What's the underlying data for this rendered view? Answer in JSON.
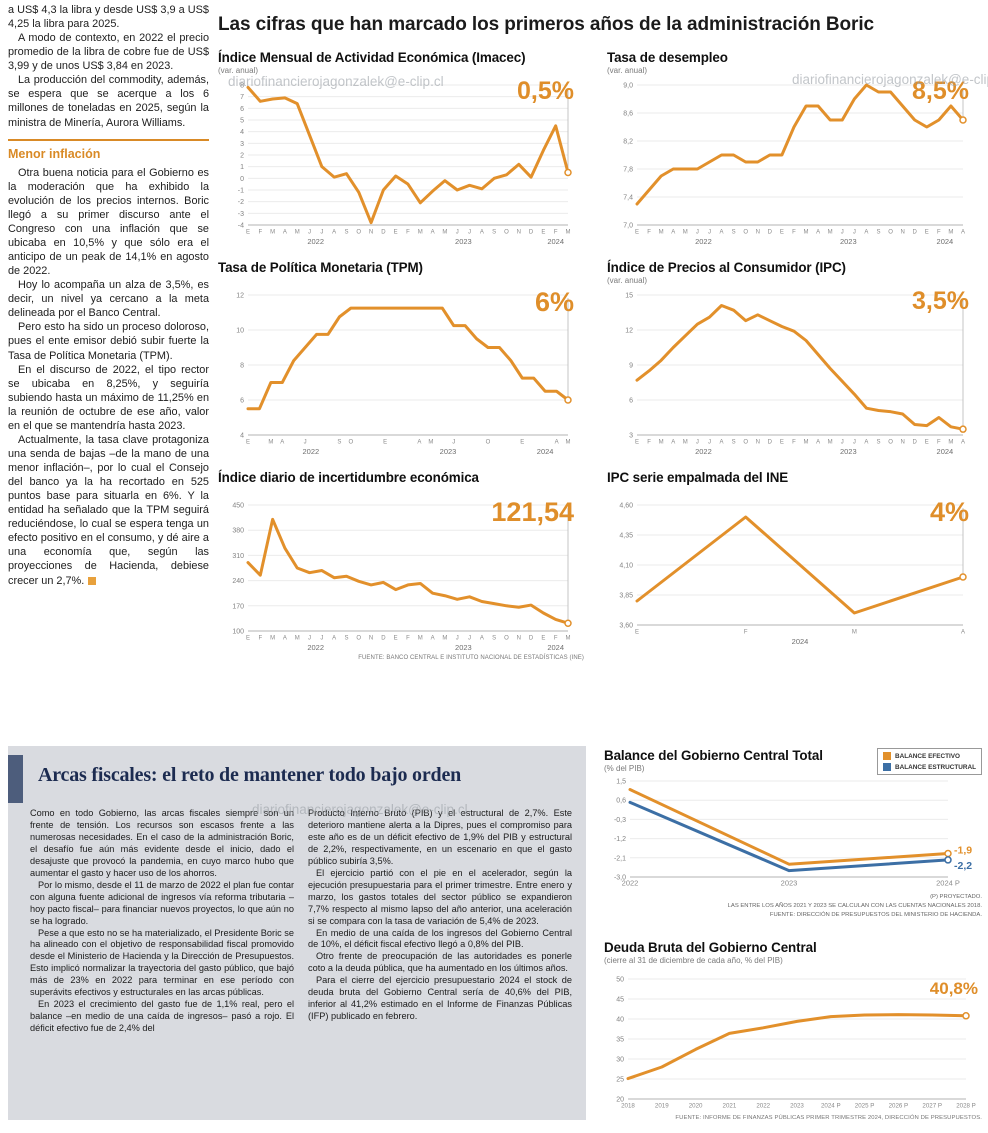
{
  "palette": {
    "orange": "#E2902B",
    "blue": "#3C6FA5",
    "panel_gray": "#D9DBE0",
    "accent_bar": "#4D5D7C",
    "navy": "#1C2B50"
  },
  "watermark": {
    "text": "diariofinancierojagonzalek@e-clip.cl"
  },
  "left_article": {
    "paragraphs": [
      "a US$ 4,3 la libra y desde US$ 3,9 a US$ 4,25 la libra para 2025.",
      "A modo de contexto, en 2022 el precio promedio de la libra de cobre fue de US$ 3,99 y de unos US$ 3,84 en 2023.",
      "La producción del commodity, además, se espera que se acerque a los 6 millones de toneladas en 2025, según la ministra de Minería, Aurora Williams."
    ],
    "subhead": "Menor inflación",
    "paragraphs2": [
      "Otra buena noticia para el Gobierno es la moderación que ha exhibido la evolución de los precios internos. Boric llegó a su primer discurso ante el Congreso con una inflación que se ubicaba en 10,5% y que sólo era el anticipo de un peak de 14,1% en agosto de 2022.",
      "Hoy lo acompaña un alza de 3,5%, es decir, un nivel ya cercano a la meta delineada por el Banco Central.",
      "Pero esto ha sido un proceso doloroso, pues el ente emisor debió subir fuerte la Tasa de Política Monetaria (TPM).",
      "En el discurso de 2022, el tipo rector se ubicaba en 8,25%, y seguiría subiendo hasta un máximo de 11,25% en la reunión de octubre de ese año, valor en el que se mantendría hasta 2023.",
      "Actualmente, la tasa clave protagoniza una senda de bajas –de la mano de una menor inflación–, por lo cual el Consejo del banco ya la ha recortado en 525 puntos base para situarla en 6%. Y la entidad ha señalado que la TPM seguirá reduciéndose, lo cual se espera tenga un efecto positivo en el consumo, y dé aire a una economía que, según las proyecciones de Hacienda, debiese crecer un 2,7%."
    ]
  },
  "main": {
    "title": "Las cifras que han marcado los primeros años de la administración Boric",
    "source": "FUENTE: BANCO CENTRAL E INSTITUTO NACIONAL DE ESTADÍSTICAS (INE)"
  },
  "bottom": {
    "title": "Arcas fiscales: el reto de mantener todo bajo orden",
    "col1": [
      "Como en todo Gobierno, las arcas fiscales siempre son un frente de tensión. Los recursos son escasos frente a las numerosas necesidades. En el caso de la administración Boric, el desafío fue aún más evidente desde el inicio, dado el desajuste que provocó la pandemia, en cuyo marco hubo que aumentar el gasto y hacer uso de los ahorros.",
      "Por lo mismo, desde el 11 de marzo de 2022 el plan fue contar con alguna fuente adicional de ingresos vía reforma tributaria –hoy pacto fiscal– para financiar nuevos proyectos, lo que aún no se ha logrado.",
      "Pese a que esto no se ha materializado, el Presidente Boric se ha alineado con el objetivo de responsabilidad fiscal promovido desde el Ministerio de Hacienda y la Dirección de Presupuestos. Esto implicó normalizar la trayectoria del gasto público, que bajó más de 23% en 2022 para terminar en ese período con superávits efectivos y estructurales en las arcas públicas.",
      "En 2023 el crecimiento del gasto fue de 1,1% real, pero el balance –en medio de una caída de ingresos– pasó a rojo. El déficit efectivo fue de 2,4% del"
    ],
    "col2": [
      "Producto Interno Bruto (PIB) y el estructural de 2,7%. Este deterioro mantiene alerta a la Dipres, pues el compromiso para este año es de un déficit efectivo de 1,9% del PIB y estructural de 2,2%, respectivamente, en un escenario en que el gasto público subiría 3,5%.",
      "El ejercicio partió con el pie en el acelerador, según la ejecución presupuestaria para el primer trimestre. Entre enero y marzo, los gastos totales del sector público se expandieron 7,7% respecto al mismo lapso del año anterior, una aceleración si se compara con la tasa de variación de 5,4% de 2023.",
      "En medio de una caída de los ingresos del Gobierno Central de 10%, el déficit fiscal efectivo llegó a 0,8% del PIB.",
      "Otro frente de preocupación de las autoridades es ponerle coto a la deuda pública, que ha aumentado en los últimos años.",
      "Para el cierre del ejercicio presupuestario 2024 el stock de deuda bruta del Gobierno Central sería de 40,6% del PIB, inferior al 41,2% estimado en el Informe de Finanzas Públicas (IFP) publicado en febrero."
    ],
    "balance_sources": [
      "(P) PROYECTADO.",
      "LAS ENTRE LOS AÑOS 2021 Y 2023 SE CALCULAN CON LAS CUENTAS NACIONALES 2018.",
      "FUENTE: DIRECCIÓN DE PRESUPUESTOS DEL MINISTERIO DE HACIENDA."
    ],
    "deuda_source": "FUENTE: INFORME DE FINANZAS PÚBLICAS PRIMER TRIMESTRE 2024, DIRECCIÓN DE PRESUPUESTOS."
  },
  "chart_data": [
    {
      "id": "imacec",
      "type": "line",
      "title": "Índice Mensual de Actividad Económica (Imacec)",
      "subtitle": "(var. anual)",
      "value_label": "0,5%",
      "ylim": [
        -4,
        8
      ],
      "yticks": [
        8,
        7,
        6,
        5,
        4,
        3,
        2,
        1,
        0,
        -1,
        -2,
        -3,
        -4
      ],
      "ytick_labels": [
        "8",
        "7",
        "6",
        "5",
        "4",
        "3",
        "2",
        "1",
        "0",
        "-1",
        "-2",
        "-3",
        "-4"
      ],
      "xlabels": [
        "E",
        "F",
        "M",
        "A",
        "M",
        "J",
        "J",
        "A",
        "S",
        "O",
        "N",
        "D",
        "E",
        "F",
        "M",
        "A",
        "M",
        "J",
        "J",
        "A",
        "S",
        "O",
        "N",
        "D",
        "E",
        "F",
        "M"
      ],
      "groups": [
        {
          "label": "2022",
          "from": 0,
          "to": 11
        },
        {
          "label": "2023",
          "from": 12,
          "to": 23
        },
        {
          "label": "2024",
          "from": 24,
          "to": 26
        }
      ],
      "ref_line": true,
      "series": [
        {
          "name": "Imacec var. anual %",
          "color": "#E2902B",
          "width": 3,
          "end_dot": true,
          "values": [
            7.8,
            6.6,
            6.8,
            6.9,
            6.4,
            3.7,
            1.0,
            0.1,
            0.4,
            -1.2,
            -3.8,
            -1.0,
            0.2,
            -0.5,
            -2.1,
            -1.1,
            -0.2,
            -1.0,
            -0.6,
            -0.9,
            0.0,
            0.3,
            1.2,
            0.1,
            2.4,
            4.5,
            0.5
          ]
        }
      ]
    },
    {
      "id": "desempleo",
      "type": "line",
      "title": "Tasa de desempleo",
      "subtitle": "(var. anual)",
      "value_label": "8,5%",
      "ylim": [
        7.0,
        9.0
      ],
      "yticks": [
        9.0,
        8.6,
        8.2,
        7.8,
        7.4,
        7.0
      ],
      "ytick_labels": [
        "9,0",
        "8,6",
        "8,2",
        "7,8",
        "7,4",
        "7,0"
      ],
      "xlabels": [
        "E",
        "F",
        "M",
        "A",
        "M",
        "J",
        "J",
        "A",
        "S",
        "O",
        "N",
        "D",
        "E",
        "F",
        "M",
        "A",
        "M",
        "J",
        "J",
        "A",
        "S",
        "O",
        "N",
        "D",
        "E",
        "F",
        "M",
        "A"
      ],
      "groups": [
        {
          "label": "2022",
          "from": 0,
          "to": 11
        },
        {
          "label": "2023",
          "from": 12,
          "to": 23
        },
        {
          "label": "2024",
          "from": 24,
          "to": 27
        }
      ],
      "ref_line": true,
      "series": [
        {
          "name": "Tasa de desempleo %",
          "color": "#E2902B",
          "width": 3,
          "end_dot": true,
          "values": [
            7.3,
            7.5,
            7.7,
            7.8,
            7.8,
            7.8,
            7.9,
            8.0,
            8.0,
            7.9,
            7.9,
            8.0,
            8.0,
            8.4,
            8.7,
            8.7,
            8.5,
            8.5,
            8.8,
            9.0,
            8.9,
            8.9,
            8.7,
            8.5,
            8.4,
            8.5,
            8.7,
            8.5
          ]
        }
      ]
    },
    {
      "id": "tpm",
      "type": "line",
      "title": "Tasa de Política Monetaria (TPM)",
      "subtitle": "",
      "value_label": "6%",
      "ylim": [
        4,
        12
      ],
      "yticks": [
        12,
        10,
        8,
        6,
        4
      ],
      "ytick_labels": [
        "12",
        "10",
        "8",
        "6",
        "4"
      ],
      "xlabels": [
        "E",
        "",
        "M",
        "A",
        "",
        "J",
        "",
        "",
        "S",
        "O",
        "",
        "",
        "E",
        "",
        "",
        "A",
        "M",
        "",
        "J",
        "",
        "",
        "O",
        "",
        "",
        "E",
        "",
        "",
        "A",
        "M"
      ],
      "groups": [
        {
          "label": "2022",
          "from": 0,
          "to": 11
        },
        {
          "label": "2023",
          "from": 12,
          "to": 23
        },
        {
          "label": "2024",
          "from": 24,
          "to": 28
        }
      ],
      "ref_line": true,
      "series": [
        {
          "name": "TPM %",
          "color": "#E2902B",
          "width": 3,
          "end_dot": true,
          "values": [
            5.5,
            5.5,
            7.0,
            7.0,
            8.25,
            9.0,
            9.75,
            9.75,
            10.75,
            11.25,
            11.25,
            11.25,
            11.25,
            11.25,
            11.25,
            11.25,
            11.25,
            11.25,
            10.25,
            10.25,
            9.5,
            9.0,
            9.0,
            8.25,
            7.25,
            7.25,
            6.5,
            6.5,
            6.0
          ]
        }
      ]
    },
    {
      "id": "ipc",
      "type": "line",
      "title": "Índice de Precios al Consumidor (IPC)",
      "subtitle": "(var. anual)",
      "value_label": "3,5%",
      "ylim": [
        3,
        15
      ],
      "yticks": [
        15,
        12,
        9,
        6,
        3
      ],
      "ytick_labels": [
        "15",
        "12",
        "9",
        "6",
        "3"
      ],
      "xlabels": [
        "E",
        "F",
        "M",
        "A",
        "M",
        "J",
        "J",
        "A",
        "S",
        "O",
        "N",
        "D",
        "E",
        "F",
        "M",
        "A",
        "M",
        "J",
        "J",
        "A",
        "S",
        "O",
        "N",
        "D",
        "E",
        "F",
        "M",
        "A"
      ],
      "groups": [
        {
          "label": "2022",
          "from": 0,
          "to": 11
        },
        {
          "label": "2023",
          "from": 12,
          "to": 23
        },
        {
          "label": "2024",
          "from": 24,
          "to": 27
        }
      ],
      "ref_line": true,
      "series": [
        {
          "name": "IPC var. anual %",
          "color": "#E2902B",
          "width": 3,
          "end_dot": true,
          "values": [
            7.7,
            8.5,
            9.4,
            10.5,
            11.5,
            12.5,
            13.1,
            14.1,
            13.7,
            12.8,
            13.3,
            12.8,
            12.3,
            11.9,
            11.1,
            9.9,
            8.7,
            7.6,
            6.5,
            5.3,
            5.1,
            5.0,
            4.8,
            3.9,
            3.8,
            4.5,
            3.7,
            3.5
          ]
        }
      ]
    },
    {
      "id": "incertidumbre",
      "type": "line",
      "title": "Índice diario de incertidumbre económica",
      "subtitle": "",
      "value_label": "121,54",
      "ylim": [
        100,
        450
      ],
      "yticks": [
        450,
        380,
        310,
        240,
        170,
        100
      ],
      "ytick_labels": [
        "450",
        "380",
        "310",
        "240",
        "170",
        "100"
      ],
      "xlabels": [
        "E",
        "F",
        "M",
        "A",
        "M",
        "J",
        "J",
        "A",
        "S",
        "O",
        "N",
        "D",
        "E",
        "F",
        "M",
        "A",
        "M",
        "J",
        "J",
        "A",
        "S",
        "O",
        "N",
        "D",
        "E",
        "F",
        "M"
      ],
      "groups": [
        {
          "label": "2022",
          "from": 0,
          "to": 11
        },
        {
          "label": "2023",
          "from": 12,
          "to": 23
        },
        {
          "label": "2024",
          "from": 24,
          "to": 26
        }
      ],
      "ref_line": true,
      "series": [
        {
          "name": "Índice de incertidumbre",
          "color": "#E2902B",
          "width": 3,
          "end_dot": true,
          "values": [
            290,
            255,
            410,
            330,
            275,
            262,
            268,
            248,
            252,
            238,
            228,
            235,
            215,
            228,
            232,
            205,
            198,
            188,
            195,
            182,
            176,
            170,
            166,
            172,
            150,
            132,
            121.54
          ]
        }
      ]
    },
    {
      "id": "ipc_ine",
      "type": "line",
      "title": "IPC serie empalmada del INE",
      "subtitle": "",
      "value_label": "4%",
      "ylim": [
        3.6,
        4.6
      ],
      "yticks": [
        4.6,
        4.35,
        4.1,
        3.85,
        3.6
      ],
      "ytick_labels": [
        "4,60",
        "4,35",
        "4,10",
        "3,85",
        "3,60"
      ],
      "xlabels": [
        "E",
        "F",
        "M",
        "A"
      ],
      "groups": [
        {
          "label": "2024",
          "from": 0,
          "to": 3
        }
      ],
      "ref_line": true,
      "series": [
        {
          "name": "IPC serie empalmada %",
          "color": "#E2902B",
          "width": 3,
          "end_dot": true,
          "values": [
            3.8,
            4.5,
            3.7,
            4.0
          ]
        }
      ]
    },
    {
      "id": "balance",
      "type": "line",
      "title": "Balance del Gobierno Central Total",
      "subtitle": "(% del PIB)",
      "value_label": "",
      "ylim": [
        -3.0,
        1.5
      ],
      "yticks": [
        1.5,
        0.6,
        -0.3,
        -1.2,
        -2.1,
        -3.0
      ],
      "ytick_labels": [
        "1,5",
        "0,6",
        "-0,3",
        "-1,2",
        "-2,1",
        "-3,0"
      ],
      "xlabels": [
        "2022",
        "2023",
        "2024 P"
      ],
      "xlabel_size": 7.5,
      "margins": {
        "l": 26,
        "r": 34,
        "t": 6,
        "b": 14
      },
      "ref_line": false,
      "series": [
        {
          "name": "BALANCE EFECTIVO",
          "color": "#E2902B",
          "width": 3,
          "end_dot": true,
          "end_label": "-1,9",
          "label_dy": 0,
          "values": [
            1.1,
            -2.4,
            -1.9
          ]
        },
        {
          "name": "BALANCE ESTRUCTURAL",
          "color": "#3C6FA5",
          "width": 3,
          "end_dot": true,
          "end_label": "-2,2",
          "label_dy": 9,
          "values": [
            0.5,
            -2.7,
            -2.2
          ]
        }
      ]
    },
    {
      "id": "deuda",
      "type": "line",
      "title": "Deuda Bruta del Gobierno Central",
      "subtitle": "(cierre al 31 de diciembre de cada año, % del PIB)",
      "value_label": "40,8%",
      "ylim": [
        20,
        50
      ],
      "yticks": [
        50,
        45,
        40,
        35,
        30,
        25,
        20
      ],
      "ytick_labels": [
        "50",
        "45",
        "40",
        "35",
        "30",
        "25",
        "20"
      ],
      "xlabels": [
        "2018",
        "2019",
        "2020",
        "2021",
        "2022",
        "2023",
        "2024 P",
        "2025 P",
        "2026 P",
        "2027 P",
        "2028 P"
      ],
      "xlabel_size": 6.2,
      "margins": {
        "l": 24,
        "r": 16,
        "t": 12,
        "b": 14
      },
      "ref_line": false,
      "series": [
        {
          "name": "Deuda bruta % del PIB",
          "color": "#E2902B",
          "width": 3,
          "end_dot": true,
          "values": [
            25.1,
            28.0,
            32.4,
            36.4,
            37.8,
            39.4,
            40.6,
            41.0,
            41.1,
            41.0,
            40.8
          ]
        }
      ]
    }
  ]
}
